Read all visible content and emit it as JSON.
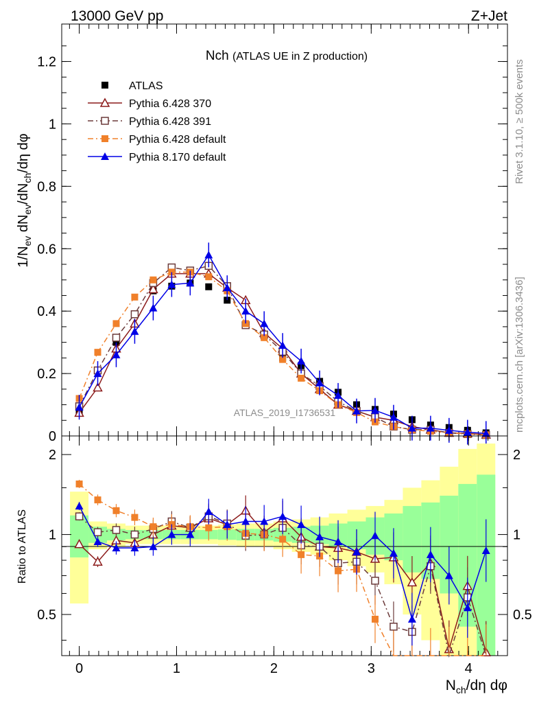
{
  "header": {
    "left": "13000 GeV pp",
    "right": "Z+Jet"
  },
  "side": {
    "rivet": "Rivet 3.1.10, ≥ 500k events",
    "mcplots": "mcplots.cern.ch [arXiv:1306.3436]"
  },
  "chart_data": {
    "type": "scatter",
    "title_main": "Nch",
    "title_sub": "(ATLAS UE in Z production)",
    "watermark": "ATLAS_2019_I1736531",
    "xlabel": "N_ch/dη dφ",
    "ylabel": "1/N_ev dN_ev/dN_ch/dη dφ",
    "ratio_ylabel": "Ratio to ATLAS",
    "xlim": [
      -0.18,
      4.4
    ],
    "ylim": [
      0,
      1.32
    ],
    "ratio_ylim": [
      0.35,
      2.35
    ],
    "xticks": [
      "0",
      "1",
      "2",
      "3",
      "4"
    ],
    "yticks": [
      "0",
      "0.2",
      "0.4",
      "0.6",
      "0.8",
      "1",
      "1.2"
    ],
    "ratio_yticks": [
      "0.5",
      "1",
      "2"
    ],
    "x": [
      0.0,
      0.19,
      0.38,
      0.57,
      0.76,
      0.95,
      1.14,
      1.33,
      1.52,
      1.71,
      1.9,
      2.09,
      2.28,
      2.47,
      2.66,
      2.85,
      3.04,
      3.23,
      3.42,
      3.61,
      3.8,
      3.99,
      4.18
    ],
    "legend": [
      "ATLAS",
      "Pythia 6.428 370",
      "Pythia 6.428 391",
      "Pythia 6.428 default",
      "Pythia 8.170 default"
    ],
    "series": [
      {
        "name": "ATLAS",
        "color": "#000000",
        "marker": "square-filled",
        "line": "none",
        "values": [
          0.08,
          0.21,
          0.3,
          0.39,
          0.465,
          0.48,
          0.49,
          0.478,
          0.435,
          0.355,
          0.32,
          0.25,
          0.225,
          0.175,
          0.14,
          0.1,
          0.085,
          0.07,
          0.052,
          0.035,
          0.027,
          0.018,
          0.01
        ],
        "ratio": [
          1,
          1,
          1,
          1,
          1,
          1,
          1,
          1,
          1,
          1,
          1,
          1,
          1,
          1,
          1,
          1,
          1,
          1,
          1,
          1,
          1,
          1,
          1
        ]
      },
      {
        "name": "Pythia 6.428 370",
        "color": "#8b1a1a",
        "marker": "triangle-open",
        "line": "solid",
        "values": [
          0.074,
          0.155,
          0.28,
          0.36,
          0.47,
          0.52,
          0.52,
          0.52,
          0.475,
          0.435,
          0.33,
          0.28,
          0.2,
          0.15,
          0.1,
          0.08,
          0.06,
          0.05,
          0.03,
          0.02,
          0.01,
          0.008,
          0.004
        ],
        "ratio": [
          0.92,
          0.79,
          0.95,
          0.93,
          1.0,
          1.08,
          1.06,
          1.15,
          1.09,
          1.23,
          1.02,
          1.15,
          0.98,
          0.9,
          0.89,
          0.86,
          0.81,
          0.82,
          0.66,
          0.78,
          0.37,
          0.64,
          0.36
        ]
      },
      {
        "name": "Pythia 6.428 391",
        "color": "#6b3a3a",
        "marker": "square-open",
        "line": "dashdot",
        "values": [
          0.095,
          0.21,
          0.315,
          0.39,
          0.49,
          0.54,
          0.53,
          0.545,
          0.48,
          0.355,
          0.325,
          0.27,
          0.2,
          0.16,
          0.11,
          0.08,
          0.06,
          0.03,
          0.02,
          0.02,
          0.01,
          0.006,
          0.003
        ],
        "ratio": [
          1.17,
          1.02,
          1.04,
          1.0,
          1.05,
          1.12,
          1.06,
          1.17,
          1.1,
          0.99,
          1.0,
          1.06,
          0.91,
          0.9,
          0.78,
          0.79,
          0.67,
          0.45,
          0.43,
          0.76,
          0.33,
          0.58,
          0.3
        ]
      },
      {
        "name": "Pythia 6.428 default",
        "color": "#f0802a",
        "marker": "square-filled",
        "line": "dashdot",
        "values": [
          0.12,
          0.268,
          0.36,
          0.445,
          0.5,
          0.525,
          0.525,
          0.51,
          0.465,
          0.36,
          0.315,
          0.245,
          0.185,
          0.145,
          0.1,
          0.075,
          0.045,
          0.03,
          0.02,
          0.015,
          0.01,
          0.006,
          0.003
        ],
        "ratio": [
          1.55,
          1.35,
          1.23,
          1.16,
          1.07,
          1.09,
          1.07,
          1.06,
          1.07,
          1.01,
          1.0,
          0.96,
          0.84,
          0.83,
          0.73,
          0.74,
          0.48,
          0.34,
          0.3,
          0.3,
          0.3,
          0.3,
          0.3
        ]
      },
      {
        "name": "Pythia 8.170 default",
        "color": "#0000e6",
        "marker": "triangle-filled",
        "line": "solid",
        "values": [
          0.092,
          0.2,
          0.26,
          0.335,
          0.41,
          0.485,
          0.49,
          0.58,
          0.475,
          0.4,
          0.36,
          0.29,
          0.24,
          0.17,
          0.13,
          0.08,
          0.082,
          0.06,
          0.025,
          0.025,
          0.018,
          0.012,
          0.008
        ],
        "ratio": [
          1.28,
          0.94,
          0.89,
          0.89,
          0.9,
          1.0,
          1.0,
          1.22,
          1.09,
          1.12,
          1.12,
          1.17,
          1.09,
          0.98,
          0.94,
          0.86,
          0.99,
          0.85,
          0.48,
          0.84,
          0.7,
          0.53,
          0.87
        ]
      }
    ],
    "bands": {
      "green_half": [
        0.18,
        0.07,
        0.05,
        0.04,
        0.04,
        0.04,
        0.04,
        0.04,
        0.045,
        0.05,
        0.05,
        0.06,
        0.07,
        0.08,
        0.1,
        0.12,
        0.16,
        0.2,
        0.28,
        0.32,
        0.4,
        0.55,
        0.68
      ],
      "yellow_half": [
        0.45,
        0.12,
        0.1,
        0.08,
        0.08,
        0.08,
        0.08,
        0.08,
        0.09,
        0.1,
        0.1,
        0.12,
        0.14,
        0.16,
        0.2,
        0.24,
        0.28,
        0.35,
        0.5,
        0.6,
        0.8,
        1.1,
        1.2
      ]
    }
  }
}
